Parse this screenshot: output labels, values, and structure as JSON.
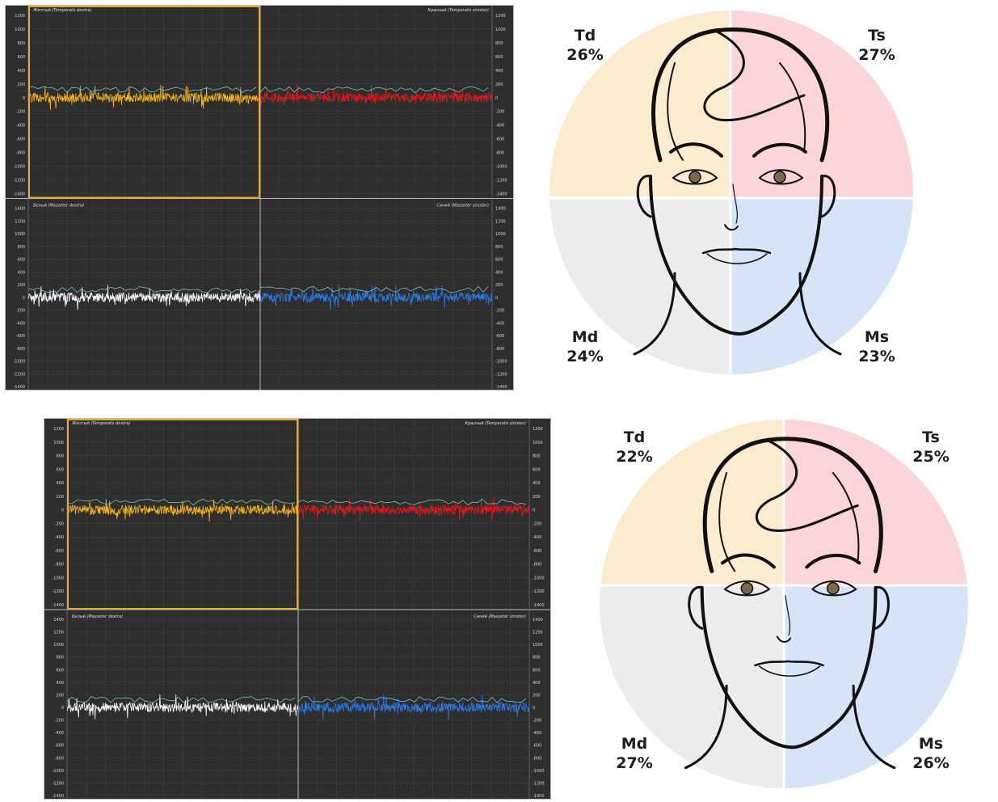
{
  "emg_panels": [
    {
      "y_ticks": [
        "1200",
        "1000",
        "800",
        "600",
        "400",
        "200",
        "0",
        "-200",
        "-400",
        "-600",
        "-800",
        "-1000",
        "-1200",
        "-1400"
      ],
      "y_ticks_bottom": [
        "1400",
        "1200",
        "1000",
        "800",
        "600",
        "400",
        "200",
        "0",
        "-200",
        "-400",
        "-600",
        "-800",
        "-1000",
        "-1200",
        "-1400"
      ],
      "titles": {
        "top_left": "Желтый (Temporalis dextra)",
        "top_right": "Красный (Temporalis sinister)",
        "bottom_left": "Белый (Masseter dextra)",
        "bottom_right": "Синий (Masseter sinister)"
      },
      "colors": {
        "top_left": "#f5b417",
        "top_right": "#e8141b",
        "bottom_left": "#ffffff",
        "bottom_right": "#2a7ae8",
        "highlight": "#e8a92c",
        "envelope": "#7fd6d6"
      }
    },
    {
      "y_ticks": [
        "1200",
        "1000",
        "800",
        "600",
        "400",
        "200",
        "0",
        "-200",
        "-400",
        "-600",
        "-800",
        "-1000",
        "-1200",
        "-1400"
      ],
      "y_ticks_bottom": [
        "1400",
        "1200",
        "1000",
        "800",
        "600",
        "400",
        "200",
        "0",
        "-200",
        "-400",
        "-600",
        "-800",
        "-1000",
        "-1200",
        "-1400"
      ],
      "titles": {
        "top_left": "Желтый (Temporalis dextra)",
        "top_right": "Красный (Temporalis sinister)",
        "bottom_left": "Белый (Masseter dextra)",
        "bottom_right": "Синий (Masseter sinister)"
      },
      "colors": {
        "top_left": "#f5b417",
        "top_right": "#e8141b",
        "bottom_left": "#ffffff",
        "bottom_right": "#2a7ae8",
        "highlight": "#e8a92c",
        "envelope": "#7fd6d6"
      }
    }
  ],
  "faces": [
    {
      "quadrants": {
        "td": {
          "label": "Td",
          "value": "26%",
          "percent": 26,
          "color": "#fbeccf"
        },
        "ts": {
          "label": "Ts",
          "value": "27%",
          "percent": 27,
          "color": "#fbd5d8"
        },
        "md": {
          "label": "Md",
          "value": "24%",
          "percent": 24,
          "color": "#ececec"
        },
        "ms": {
          "label": "Ms",
          "value": "23%",
          "percent": 23,
          "color": "#d5e4f7"
        }
      }
    },
    {
      "quadrants": {
        "td": {
          "label": "Td",
          "value": "22%",
          "percent": 22,
          "color": "#fbeccf"
        },
        "ts": {
          "label": "Ts",
          "value": "25%",
          "percent": 25,
          "color": "#fbd5d8"
        },
        "md": {
          "label": "Md",
          "value": "27%",
          "percent": 27,
          "color": "#ececec"
        },
        "ms": {
          "label": "Ms",
          "value": "26%",
          "percent": 26,
          "color": "#d5e4f7"
        }
      }
    }
  ]
}
